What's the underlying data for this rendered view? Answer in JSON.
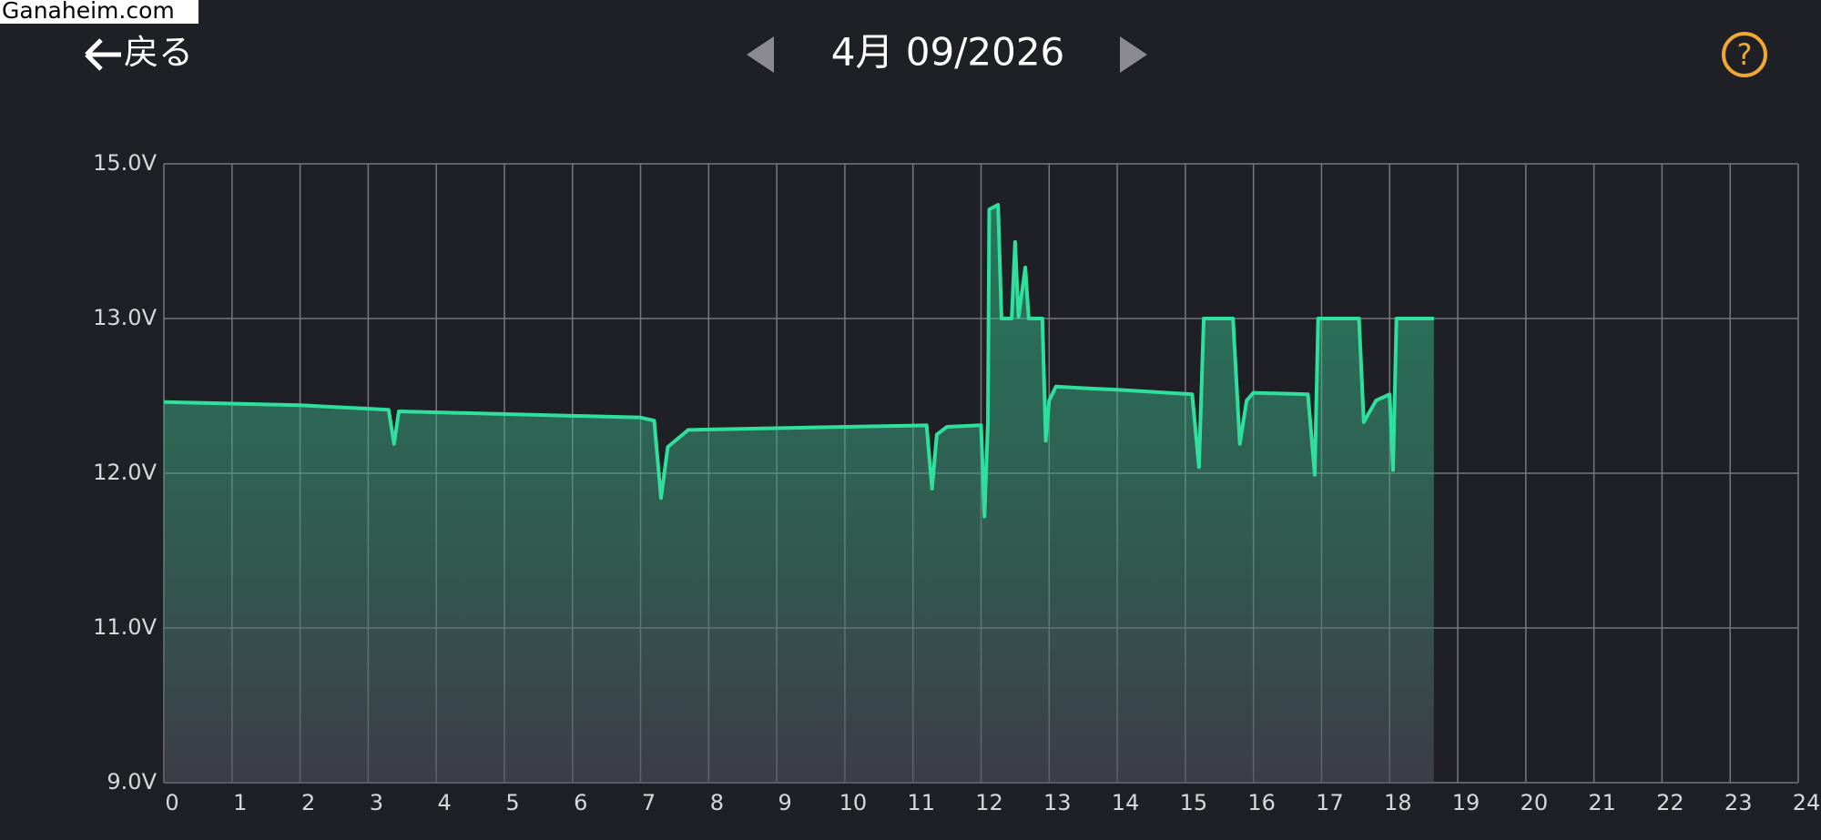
{
  "header": {
    "watermark": "Ganaheim.com",
    "back": "戻る",
    "date": "4月 09/2026",
    "help": "?"
  },
  "chart_data": {
    "type": "line",
    "grid": true,
    "x": [
      0,
      2,
      3.3,
      3.38,
      3.45,
      7.0,
      7.2,
      7.3,
      7.4,
      7.7,
      11.2,
      11.28,
      11.35,
      11.5,
      12.0,
      12.05,
      12.1,
      12.12,
      12.25,
      12.3,
      12.45,
      12.5,
      12.55,
      12.65,
      12.7,
      12.9,
      12.95,
      13.0,
      13.1,
      13.5,
      14.0,
      15.1,
      15.2,
      15.27,
      15.7,
      15.8,
      15.9,
      16.0,
      16.8,
      16.9,
      16.95,
      17.55,
      17.62,
      17.8,
      18.0,
      18.05,
      18.1,
      18.65
    ],
    "series": [
      {
        "color": "#2fe09c",
        "values": [
          12.46,
          12.44,
          12.41,
          12.19,
          12.4,
          12.36,
          12.34,
          11.84,
          12.17,
          12.28,
          12.31,
          11.9,
          12.25,
          12.3,
          12.31,
          11.72,
          12.32,
          14.41,
          14.47,
          13.0,
          13.0,
          13.99,
          13.02,
          13.66,
          13.0,
          13.0,
          12.21,
          12.47,
          12.56,
          12.55,
          12.54,
          12.51,
          12.04,
          13.0,
          13.0,
          12.19,
          12.47,
          12.52,
          12.51,
          11.99,
          13.0,
          13.0,
          12.33,
          12.47,
          12.51,
          12.02,
          13.0,
          13.0
        ]
      }
    ],
    "xlim": [
      0,
      24
    ],
    "xticks": [
      0,
      1,
      2,
      3,
      4,
      5,
      6,
      7,
      8,
      9,
      10,
      11,
      12,
      13,
      14,
      15,
      16,
      17,
      18,
      19,
      20,
      21,
      22,
      23,
      24
    ],
    "ylim": [
      9,
      15
    ],
    "yticks": [
      {
        "value": 9,
        "label": "9.0V"
      },
      {
        "value": 11,
        "label": "11.0V"
      },
      {
        "value": 12,
        "label": "12.0V"
      },
      {
        "value": 13,
        "label": "13.0V"
      },
      {
        "value": 15,
        "label": "15.0V"
      }
    ]
  }
}
